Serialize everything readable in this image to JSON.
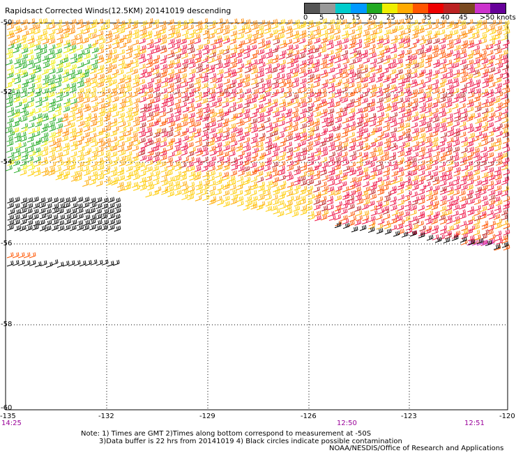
{
  "title": "Rapidsact Corrected Winds(12.5KM) 20141019 descending",
  "legend": {
    "labels": [
      "0",
      "5",
      "10",
      "15",
      "20",
      "25",
      "30",
      "35",
      "40",
      "45",
      ">50 knots"
    ],
    "colors": [
      "#555555",
      "#999999",
      "#00cccc",
      "#0099ff",
      "#22aa22",
      "#eeee00",
      "#ffaa00",
      "#ff5500",
      "#ee0000",
      "#bb2222",
      "#7a4a20",
      "#cc33cc",
      "#660099"
    ]
  },
  "axes": {
    "lon_labels": [
      "-135",
      "-132",
      "-129",
      "-126",
      "-123",
      "-120"
    ],
    "lat_labels": [
      "-50",
      "-52",
      "-54",
      "-56",
      "-58",
      "-60"
    ]
  },
  "times": [
    "14:25",
    "12:50",
    "12:51"
  ],
  "notes": {
    "line1": "Note: 1) Times are GMT 2)Times along bottom correspond to measurement at -50S",
    "line2": "3)Data buffer is 22 hrs from 20141019 4) Black circles indicate possible contamination",
    "credit": "NOAA/NESDIS/Office of Research and Applications"
  }
}
